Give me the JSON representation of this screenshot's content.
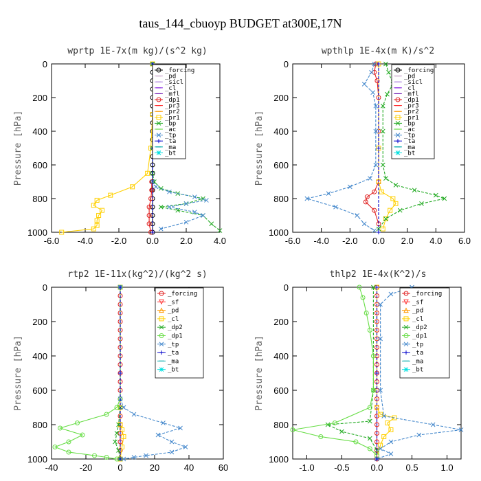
{
  "figure": {
    "title": "taus_144_cbuoyp  BUDGET at300E,17N"
  },
  "chart_data": [
    {
      "type": "line",
      "title": "wprtp  1E-7x(m kg)/(s^2 kg)",
      "ylabel": "Pressure [hPa]",
      "xlim": [
        -6,
        4
      ],
      "ylim": [
        0,
        1000
      ],
      "xticks": [
        -6,
        -4,
        -2,
        0,
        2,
        4
      ],
      "xtick_labels": [
        "-6.0",
        "-4.0",
        "-2.0",
        "0.0",
        "2.0",
        "4.0"
      ],
      "yticks": [
        0,
        200,
        400,
        600,
        800,
        1000
      ],
      "ytick_labels": [
        "0",
        "200",
        "400",
        "600",
        "800",
        "1000"
      ],
      "grid": false,
      "legend_position": "top-right",
      "series": [
        {
          "name": "_forcing",
          "color": "#000000",
          "marker": "o",
          "x": [
            0,
            0,
            0,
            0,
            0,
            0,
            0,
            0,
            0,
            0,
            0,
            0,
            0,
            0,
            0,
            0,
            0,
            0,
            0,
            0,
            0
          ],
          "y": [
            0,
            50,
            100,
            150,
            200,
            250,
            300,
            350,
            400,
            450,
            500,
            550,
            600,
            650,
            700,
            750,
            800,
            850,
            900,
            950,
            1000
          ]
        },
        {
          "name": "_pd",
          "color": "#c8a0c8",
          "marker": "-",
          "x": [],
          "y": []
        },
        {
          "name": "_sicl",
          "color": "#b08ae0",
          "marker": "-",
          "x": [],
          "y": []
        },
        {
          "name": "_cl",
          "color": "#8a2be2",
          "marker": "-",
          "x": [],
          "y": []
        },
        {
          "name": "_mfl",
          "color": "#6a0dad",
          "marker": "-",
          "x": [],
          "y": []
        },
        {
          "name": "_dp1",
          "color": "#e02020",
          "marker": "o",
          "x": [
            -0.05,
            -0.05,
            -0.1,
            -0.2,
            -0.2,
            -0.2,
            -0.1
          ],
          "y": [
            700,
            750,
            800,
            850,
            900,
            950,
            1000
          ]
        },
        {
          "name": "_pr3",
          "color": "#ff3030",
          "marker": "-",
          "x": [],
          "y": []
        },
        {
          "name": "_pr2",
          "color": "#ff9900",
          "marker": "-",
          "x": [],
          "y": []
        },
        {
          "name": "_pr1",
          "color": "#ffd000",
          "marker": "s",
          "x": [
            0,
            0,
            -0.1,
            -0.3,
            -1.2,
            -2.5,
            -3.3,
            -3.5,
            -3.0,
            -3.2,
            -3.3,
            -3.3,
            -3.5,
            -5.4
          ],
          "y": [
            0,
            300,
            500,
            650,
            730,
            780,
            810,
            840,
            870,
            900,
            930,
            960,
            980,
            1000
          ]
        },
        {
          "name": "_bp",
          "color": "#22aa22",
          "marker": "x",
          "x": [
            0,
            0,
            0,
            0.1,
            0.5,
            1.5,
            3.0,
            2.0,
            0.5,
            1.5,
            3.0,
            3.5,
            4.0
          ],
          "y": [
            0,
            500,
            650,
            700,
            740,
            770,
            800,
            830,
            850,
            870,
            900,
            950,
            990
          ]
        },
        {
          "name": "_ac",
          "color": "#66dd44",
          "marker": "-",
          "x": [],
          "y": []
        },
        {
          "name": "_tp",
          "color": "#4488cc",
          "marker": "x",
          "x": [
            0,
            0.2,
            1.0,
            2.5,
            3.2,
            2.0,
            1.0,
            2.5,
            3.0,
            2.0,
            0.5
          ],
          "y": [
            700,
            730,
            760,
            790,
            810,
            830,
            850,
            880,
            900,
            940,
            980
          ]
        },
        {
          "name": "_ta",
          "color": "#0000cc",
          "marker": "+",
          "x": [
            0,
            0,
            0
          ],
          "y": [
            0,
            500,
            1000
          ]
        },
        {
          "name": "_ma",
          "color": "#00aaaa",
          "marker": "-",
          "x": [],
          "y": []
        },
        {
          "name": "_bt",
          "color": "#00e0e0",
          "marker": "*",
          "x": [],
          "y": []
        }
      ]
    },
    {
      "type": "line",
      "title": "wpthlp  1E-4x(m K)/s^2",
      "ylabel": "Pressure [hPa]",
      "xlim": [
        -6,
        6
      ],
      "ylim": [
        0,
        1000
      ],
      "xticks": [
        -6,
        -4,
        -2,
        0,
        2,
        4,
        6
      ],
      "xtick_labels": [
        "-6.0",
        "-4.0",
        "-2.0",
        "0.0",
        "2.0",
        "4.0",
        "6.0"
      ],
      "yticks": [
        0,
        200,
        400,
        600,
        800,
        1000
      ],
      "ytick_labels": [
        "0",
        "200",
        "400",
        "600",
        "800",
        "1000"
      ],
      "grid": false,
      "legend_position": "top-right",
      "series": [
        {
          "name": "_forcing",
          "color": "#000000",
          "marker": "o",
          "x": [],
          "y": []
        },
        {
          "name": "_pd",
          "color": "#c8a0c8",
          "marker": "-",
          "x": [],
          "y": []
        },
        {
          "name": "_sicl",
          "color": "#b08ae0",
          "marker": "-",
          "x": [],
          "y": []
        },
        {
          "name": "_cl",
          "color": "#8a2be2",
          "marker": "-",
          "x": [],
          "y": []
        },
        {
          "name": "_mfl",
          "color": "#6a0dad",
          "marker": "-",
          "x": [],
          "y": []
        },
        {
          "name": "_dp1",
          "color": "#e02020",
          "marker": "o",
          "x": [
            -0.2,
            -0.3,
            -0.1,
            0,
            0,
            0,
            -0.3,
            -0.8,
            -0.9,
            -0.3,
            0
          ],
          "y": [
            0,
            50,
            100,
            200,
            400,
            700,
            760,
            790,
            820,
            870,
            950
          ]
        },
        {
          "name": "_pr3",
          "color": "#ff3030",
          "marker": "-",
          "x": [],
          "y": []
        },
        {
          "name": "_pr2",
          "color": "#ff9900",
          "marker": "-",
          "x": [],
          "y": []
        },
        {
          "name": "_pr1",
          "color": "#ffd000",
          "marker": "s",
          "x": [
            0,
            0,
            0,
            0.2,
            1.0,
            1.2,
            0.8,
            0.5,
            0.3
          ],
          "y": [
            0,
            500,
            700,
            760,
            800,
            830,
            870,
            920,
            980
          ]
        },
        {
          "name": "_bp",
          "color": "#22aa22",
          "marker": "x",
          "x": [
            0.5,
            0.7,
            1.0,
            0.6,
            0.3,
            0.3,
            0.3,
            0.5,
            1.2,
            2.5,
            4.0,
            4.6,
            3.0,
            1.5,
            0.5,
            0
          ],
          "y": [
            0,
            50,
            120,
            180,
            250,
            400,
            600,
            680,
            720,
            750,
            780,
            800,
            830,
            870,
            920,
            980
          ]
        },
        {
          "name": "_ac",
          "color": "#66dd44",
          "marker": "-",
          "x": [],
          "y": []
        },
        {
          "name": "_tp",
          "color": "#4488cc",
          "marker": "x",
          "x": [
            -0.3,
            -0.5,
            -1.0,
            -0.4,
            -0.2,
            -0.2,
            -0.2,
            -0.6,
            -2.0,
            -3.5,
            -5.0,
            -3.0,
            -1.5,
            -1.0,
            -0.3
          ],
          "y": [
            0,
            50,
            120,
            170,
            250,
            400,
            600,
            680,
            730,
            770,
            800,
            850,
            900,
            950,
            990
          ]
        },
        {
          "name": "_ta",
          "color": "#0000cc",
          "marker": "+",
          "x": [
            0,
            0,
            0
          ],
          "y": [
            0,
            500,
            1000
          ]
        },
        {
          "name": "_ma",
          "color": "#00aaaa",
          "marker": "-",
          "x": [],
          "y": []
        },
        {
          "name": "_bt",
          "color": "#00e0e0",
          "marker": "*",
          "x": [],
          "y": []
        }
      ]
    },
    {
      "type": "line",
      "title": "rtp2  1E-11x(kg^2)/(kg^2 s)",
      "ylabel": "Pressure [hPa]",
      "xlim": [
        -40,
        60
      ],
      "ylim": [
        0,
        1000
      ],
      "xticks": [
        -40,
        -20,
        0,
        20,
        40,
        60
      ],
      "xtick_labels": [
        "-40",
        "-20",
        "0",
        "20",
        "40",
        "60"
      ],
      "yticks": [
        0,
        200,
        400,
        600,
        800,
        1000
      ],
      "ytick_labels": [
        "0",
        "200",
        "400",
        "600",
        "800",
        "1000"
      ],
      "grid": false,
      "legend_position": "top-right",
      "series": [
        {
          "name": "_forcing",
          "color": "#e02020",
          "marker": "o",
          "x": [
            0,
            0,
            0,
            0,
            0,
            0,
            0,
            0,
            0,
            0,
            0,
            0,
            0,
            0,
            0,
            0,
            0,
            0,
            0,
            0,
            0
          ],
          "y": [
            0,
            50,
            100,
            150,
            200,
            250,
            300,
            350,
            400,
            450,
            500,
            550,
            600,
            650,
            700,
            750,
            800,
            850,
            900,
            950,
            1000
          ]
        },
        {
          "name": "_sf",
          "color": "#ff3030",
          "marker": "v",
          "x": [],
          "y": []
        },
        {
          "name": "_pd",
          "color": "#ff9900",
          "marker": "^",
          "x": [],
          "y": []
        },
        {
          "name": "_cl",
          "color": "#ffd000",
          "marker": "s",
          "x": [
            0,
            0,
            0,
            1,
            2,
            1,
            0
          ],
          "y": [
            0,
            700,
            800,
            830,
            870,
            930,
            1000
          ]
        },
        {
          "name": "_dp2",
          "color": "#22aa22",
          "marker": "x",
          "x": [
            0,
            0,
            -1,
            -2,
            -3,
            -1,
            0
          ],
          "y": [
            0,
            700,
            800,
            850,
            900,
            950,
            1000
          ]
        },
        {
          "name": "_dp1",
          "color": "#66dd44",
          "marker": "o",
          "x": [
            0,
            0,
            -2,
            -8,
            -25,
            -35,
            -22,
            -30,
            -38,
            -30,
            -15,
            -8,
            -2
          ],
          "y": [
            0,
            650,
            700,
            740,
            790,
            820,
            860,
            900,
            930,
            960,
            980,
            990,
            1000
          ]
        },
        {
          "name": "_tp",
          "color": "#4488cc",
          "marker": "x",
          "x": [
            0,
            0,
            2,
            8,
            25,
            35,
            22,
            30,
            38,
            30,
            15,
            8,
            2
          ],
          "y": [
            0,
            650,
            700,
            740,
            790,
            820,
            860,
            900,
            930,
            960,
            980,
            990,
            1000
          ]
        },
        {
          "name": "_ta",
          "color": "#0000cc",
          "marker": "+",
          "x": [
            0,
            0,
            0
          ],
          "y": [
            0,
            500,
            1000
          ]
        },
        {
          "name": "_ma",
          "color": "#00aaaa",
          "marker": "-",
          "x": [],
          "y": []
        },
        {
          "name": "_bt",
          "color": "#00e0e0",
          "marker": "*",
          "x": [],
          "y": []
        }
      ]
    },
    {
      "type": "line",
      "title": "thlp2  1E-4x(K^2)/s",
      "ylabel": "Pressure [hPa]",
      "xlim": [
        -1.2,
        1.2
      ],
      "ylim": [
        0,
        1000
      ],
      "xticks": [
        -1.0,
        -0.5,
        0.0,
        0.5,
        1.0
      ],
      "xtick_labels": [
        "-1.0",
        "-0.5",
        "0.0",
        "0.5",
        "1.0"
      ],
      "yticks": [
        0,
        200,
        400,
        600,
        800,
        1000
      ],
      "ytick_labels": [
        "0",
        "200",
        "400",
        "600",
        "800",
        "1000"
      ],
      "grid": false,
      "legend_position": "top-right",
      "series": [
        {
          "name": "_forcing",
          "color": "#e02020",
          "marker": "o",
          "x": [
            0,
            0,
            0,
            0,
            0,
            0,
            0,
            0,
            0,
            0,
            0,
            0,
            0,
            0,
            0,
            0,
            0,
            0,
            0,
            0,
            0
          ],
          "y": [
            0,
            50,
            100,
            150,
            200,
            250,
            300,
            350,
            400,
            450,
            500,
            550,
            600,
            650,
            700,
            750,
            800,
            850,
            900,
            950,
            1000
          ]
        },
        {
          "name": "_sf",
          "color": "#ff3030",
          "marker": "v",
          "x": [],
          "y": []
        },
        {
          "name": "_pd",
          "color": "#ff9900",
          "marker": "^",
          "x": [],
          "y": []
        },
        {
          "name": "_cl",
          "color": "#ffd000",
          "marker": "s",
          "x": [
            0,
            0,
            0.05,
            0.25,
            0.15,
            0.2,
            0.1,
            0.05,
            0
          ],
          "y": [
            0,
            700,
            740,
            760,
            790,
            830,
            870,
            920,
            980
          ]
        },
        {
          "name": "_dp2",
          "color": "#22aa22",
          "marker": "x",
          "x": [
            -0.05,
            -0.05,
            -0.1,
            -0.7,
            -0.5,
            -0.1,
            0
          ],
          "y": [
            0,
            600,
            780,
            800,
            840,
            880,
            950
          ]
        },
        {
          "name": "_dp1",
          "color": "#66dd44",
          "marker": "o",
          "x": [
            -0.25,
            -0.2,
            -0.15,
            -0.1,
            -0.05,
            -0.05,
            -0.1,
            -0.6,
            -1.2,
            -0.8,
            -0.3,
            -0.1,
            0
          ],
          "y": [
            0,
            60,
            150,
            250,
            400,
            600,
            700,
            790,
            830,
            870,
            900,
            940,
            980
          ]
        },
        {
          "name": "_tp",
          "color": "#4488cc",
          "marker": "x",
          "x": [
            0.5,
            0.2,
            0.05,
            0.05,
            0.05,
            0.1,
            0.8,
            1.2,
            0.6,
            0.2,
            0.05,
            0.2,
            0
          ],
          "y": [
            0,
            40,
            100,
            300,
            600,
            750,
            800,
            830,
            860,
            900,
            940,
            970,
            1000
          ]
        },
        {
          "name": "_ta",
          "color": "#0000cc",
          "marker": "+",
          "x": [
            0,
            0,
            0
          ],
          "y": [
            0,
            500,
            1000
          ]
        },
        {
          "name": "_ma",
          "color": "#00aaaa",
          "marker": "-",
          "x": [],
          "y": []
        },
        {
          "name": "_bt",
          "color": "#00e0e0",
          "marker": "*",
          "x": [],
          "y": []
        }
      ]
    }
  ]
}
